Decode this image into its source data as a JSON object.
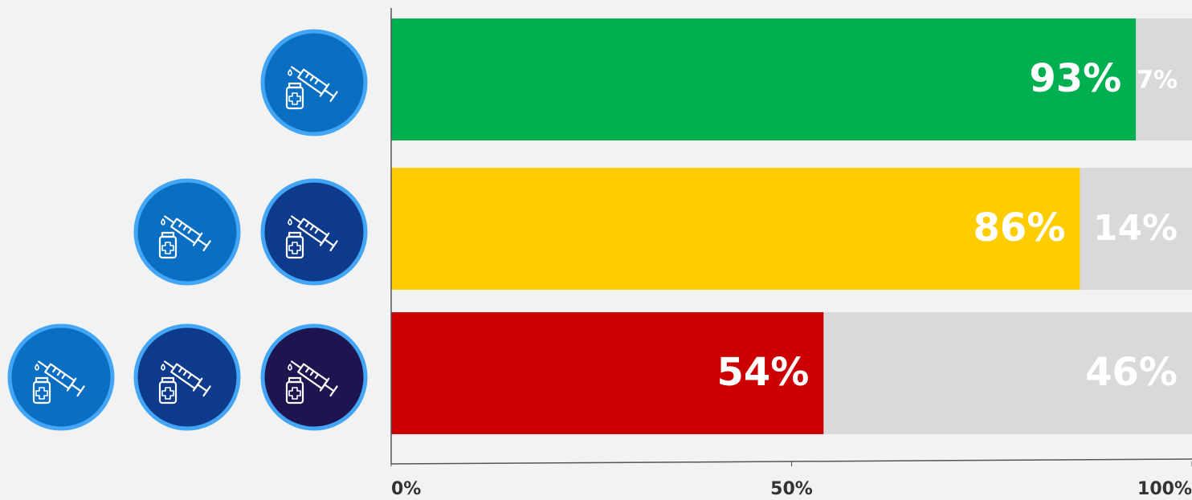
{
  "chart_data": {
    "type": "stacked-barh",
    "categories": [
      null,
      null,
      null
    ],
    "series": [
      {
        "colors": [
          "#00b050",
          "#ffcc00",
          "#cc0000"
        ],
        "values": [
          93,
          86,
          54
        ],
        "value_labels": [
          "93%",
          "86%",
          "54%"
        ]
      },
      {
        "color": "#d9d9d9",
        "values": [
          7,
          14,
          46
        ],
        "value_labels": [
          "7%",
          "14%",
          "46%"
        ]
      }
    ],
    "xlim": [
      0,
      100
    ],
    "xticks": [
      {
        "value": 0,
        "label": "0%"
      },
      {
        "value": 50,
        "label": "50%"
      },
      {
        "value": 100,
        "label": "100%"
      }
    ]
  }
}
